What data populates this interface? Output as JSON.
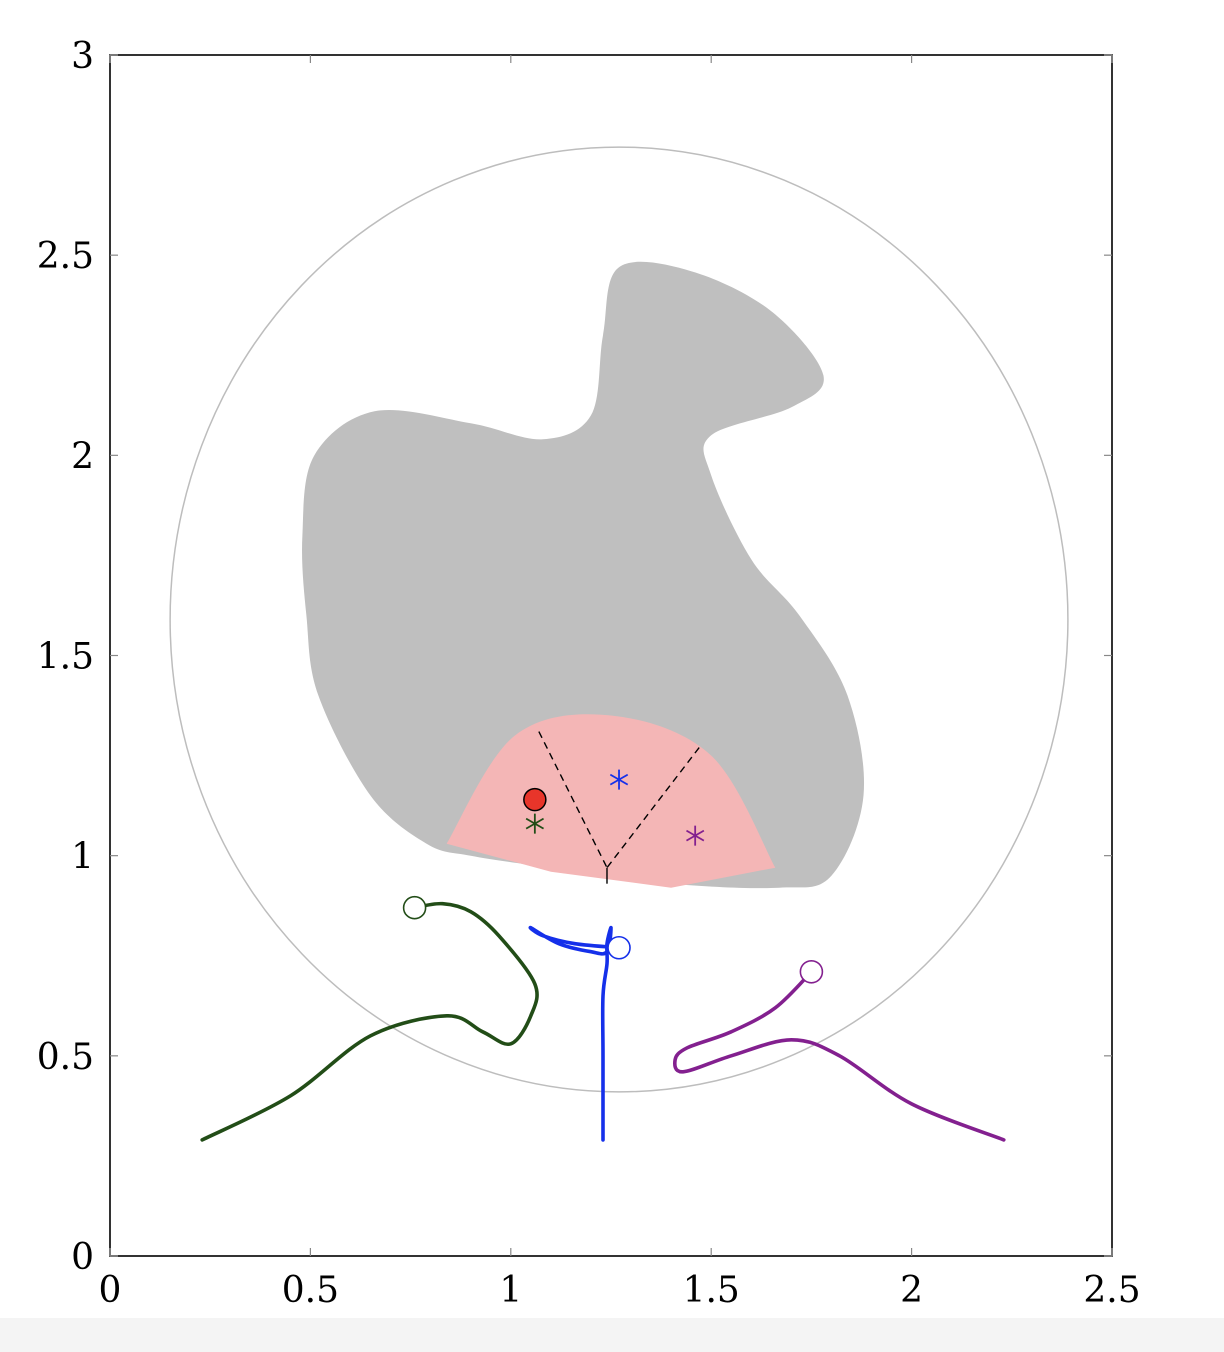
{
  "chart_data": {
    "type": "line",
    "title": "",
    "xlabel": "",
    "ylabel": "",
    "xlim": [
      0,
      2.5
    ],
    "ylim": [
      0,
      3
    ],
    "grid": false,
    "x_ticks": [
      "0",
      "0.5",
      "1",
      "1.5",
      "2",
      "2.5"
    ],
    "y_ticks": [
      "0",
      "0.5",
      "1",
      "1.5",
      "2",
      "2.5",
      "3"
    ],
    "colors": {
      "green": "#224d17",
      "blue": "#1530ea",
      "purple": "#83208f",
      "obstacle": "#bfbfbf",
      "region": "#f4b6b6",
      "circle": "#bdbdbd",
      "target": "#e8352a"
    },
    "boundary_circle": {
      "cx": 1.27,
      "cy": 1.59,
      "rx": 1.12,
      "ry": 1.18
    },
    "obstacle": [
      [
        0.79,
        1.03
      ],
      [
        0.65,
        1.15
      ],
      [
        0.52,
        1.4
      ],
      [
        0.49,
        1.6
      ],
      [
        0.48,
        1.8
      ],
      [
        0.51,
        2.0
      ],
      [
        0.66,
        2.11
      ],
      [
        0.9,
        2.08
      ],
      [
        1.08,
        2.04
      ],
      [
        1.2,
        2.1
      ],
      [
        1.23,
        2.3
      ],
      [
        1.27,
        2.47
      ],
      [
        1.45,
        2.46
      ],
      [
        1.65,
        2.36
      ],
      [
        1.78,
        2.2
      ],
      [
        1.7,
        2.12
      ],
      [
        1.5,
        2.05
      ],
      [
        1.5,
        1.95
      ],
      [
        1.6,
        1.74
      ],
      [
        1.72,
        1.6
      ],
      [
        1.84,
        1.4
      ],
      [
        1.88,
        1.15
      ],
      [
        1.8,
        0.95
      ],
      [
        1.67,
        0.92
      ],
      [
        1.4,
        0.93
      ],
      [
        1.1,
        0.97
      ],
      [
        0.9,
        1.0
      ]
    ],
    "region": {
      "arc": [
        [
          0.84,
          1.03
        ],
        [
          1.01,
          1.3
        ],
        [
          1.25,
          1.35
        ],
        [
          1.5,
          1.25
        ],
        [
          1.66,
          0.97
        ]
      ],
      "base": [
        [
          1.66,
          0.97
        ],
        [
          1.4,
          0.92
        ],
        [
          1.1,
          0.96
        ],
        [
          0.84,
          1.03
        ]
      ]
    },
    "partition_lines": [
      [
        [
          1.07,
          1.31
        ],
        [
          1.24,
          0.97
        ]
      ],
      [
        [
          1.47,
          1.27
        ],
        [
          1.24,
          0.97
        ]
      ],
      [
        [
          1.24,
          0.97
        ],
        [
          1.24,
          0.93
        ]
      ]
    ],
    "target_point": {
      "x": 1.06,
      "y": 1.14
    },
    "stars": [
      {
        "x": 1.06,
        "y": 1.08,
        "color": "green"
      },
      {
        "x": 1.27,
        "y": 1.19,
        "color": "blue"
      },
      {
        "x": 1.46,
        "y": 1.05,
        "color": "purple"
      }
    ],
    "series": [
      {
        "color": "green",
        "x": [
          0.23,
          0.45,
          0.65,
          0.84,
          0.93,
          1.0,
          1.05,
          1.06,
          0.97,
          0.9,
          0.83,
          0.76
        ],
        "y": [
          0.29,
          0.4,
          0.55,
          0.6,
          0.56,
          0.53,
          0.6,
          0.68,
          0.8,
          0.86,
          0.88,
          0.87
        ],
        "end_marker": {
          "x": 0.76,
          "y": 0.87
        }
      },
      {
        "color": "blue",
        "x": [
          1.23,
          1.23,
          1.23,
          1.24,
          1.24,
          1.25,
          1.24,
          1.2,
          1.12,
          1.05,
          1.08,
          1.16,
          1.27
        ],
        "y": [
          0.29,
          0.5,
          0.65,
          0.73,
          0.78,
          0.82,
          0.76,
          0.76,
          0.78,
          0.82,
          0.8,
          0.78,
          0.77
        ],
        "end_marker": {
          "x": 1.27,
          "y": 0.77
        }
      },
      {
        "color": "purple",
        "x": [
          2.23,
          2.0,
          1.82,
          1.7,
          1.55,
          1.43,
          1.41,
          1.44,
          1.55,
          1.66,
          1.75
        ],
        "y": [
          0.29,
          0.38,
          0.5,
          0.54,
          0.5,
          0.46,
          0.49,
          0.52,
          0.56,
          0.62,
          0.71
        ],
        "end_marker": {
          "x": 1.75,
          "y": 0.71
        }
      }
    ]
  }
}
